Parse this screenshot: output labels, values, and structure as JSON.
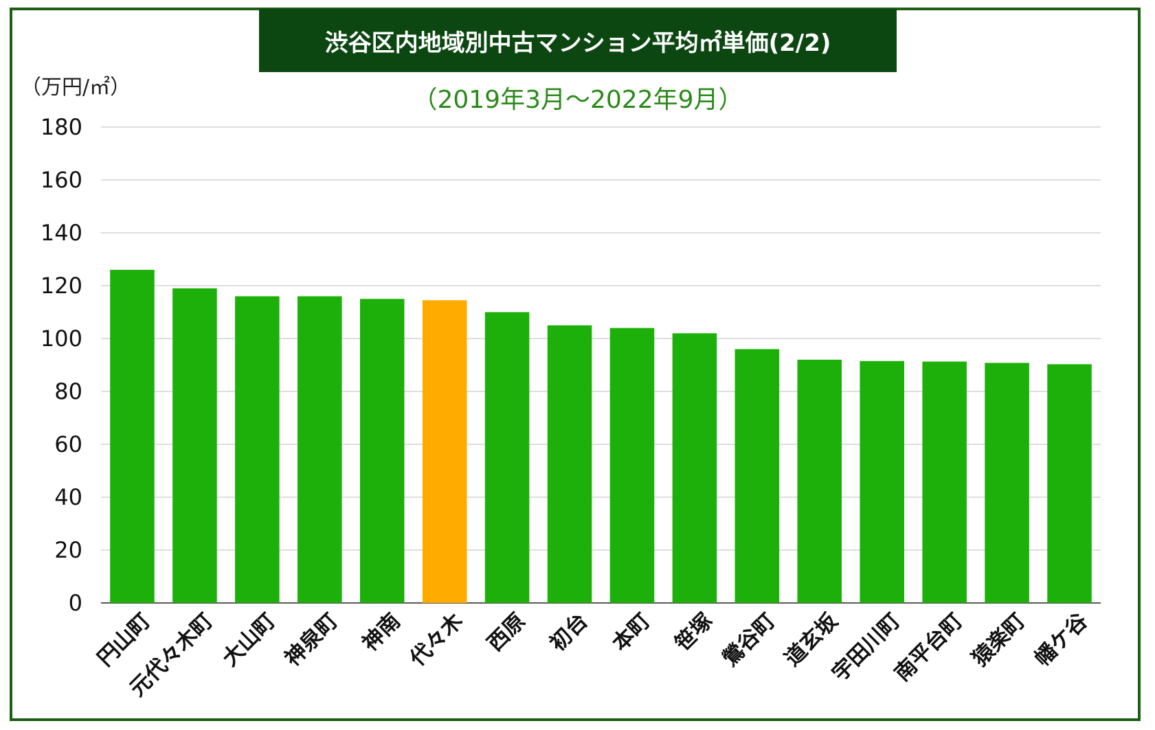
{
  "title": "渋谷区内地域別中古マンション平均㎡単価(2/2)",
  "subtitle": "（2019年3月〜2022年9月）",
  "unit_label": "（万円/㎡）",
  "colors": {
    "frame": "#1e5e14",
    "title_bg": "#0c4712",
    "bar": "#1eb00a",
    "highlight": "#ffab00",
    "subtitle": "#2a8a18"
  },
  "chart_data": {
    "type": "bar",
    "categories": [
      "円山町",
      "元代々木町",
      "大山町",
      "神泉町",
      "神南",
      "代々木",
      "西原",
      "初台",
      "本町",
      "笹塚",
      "鶯谷町",
      "道玄坂",
      "宇田川町",
      "南平台町",
      "猿楽町",
      "幡ケ谷"
    ],
    "values": [
      126,
      119,
      116,
      116,
      115,
      114.5,
      110,
      105,
      104,
      102,
      96,
      92,
      91.5,
      91.3,
      90.8,
      90.3
    ],
    "highlight_index": 5,
    "ylim": [
      0,
      180
    ],
    "yticks": [
      "0",
      "20",
      "40",
      "60",
      "80",
      "100",
      "120",
      "140",
      "160",
      "180"
    ],
    "grid": true
  }
}
